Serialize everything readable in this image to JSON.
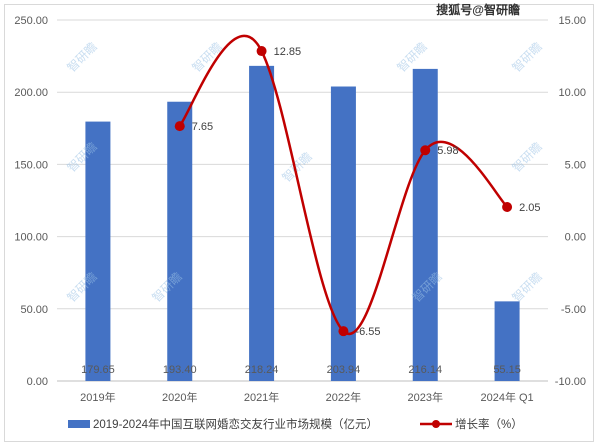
{
  "chart_data": {
    "type": "bar+line",
    "categories": [
      "2019年",
      "2020年",
      "2021年",
      "2022年",
      "2023年",
      "2024年 Q1"
    ],
    "series": [
      {
        "name": "2019-2024年中国互联网婚恋交友行业市场规模（亿元）",
        "type": "bar",
        "axis": "left",
        "color": "#4472c4",
        "values": [
          179.65,
          193.4,
          218.24,
          203.94,
          216.14,
          55.15
        ],
        "labels": [
          "179.65",
          "193.40",
          "218.24",
          "203.94",
          "216.14",
          "55.15"
        ]
      },
      {
        "name": "增长率（%）",
        "type": "line",
        "axis": "right",
        "color": "#c00000",
        "smooth": true,
        "values": [
          null,
          7.65,
          12.85,
          -6.55,
          5.98,
          2.05
        ],
        "labels": [
          "",
          "7.65",
          "12.85",
          "-6.55",
          "5.98",
          "2.05"
        ]
      }
    ],
    "left_axis": {
      "ylim": [
        0,
        250
      ],
      "ticks": [
        "0.00",
        "50.00",
        "100.00",
        "150.00",
        "200.00",
        "250.00"
      ]
    },
    "right_axis": {
      "ylim": [
        -10,
        15
      ],
      "ticks": [
        "-10.00",
        "-5.00",
        "0.00",
        "5.00",
        "10.00",
        "15.00"
      ]
    },
    "grid": true,
    "legend_position": "bottom"
  },
  "watermark": {
    "source": "搜狐号@智研瞻",
    "repeat": "智研瞻"
  }
}
